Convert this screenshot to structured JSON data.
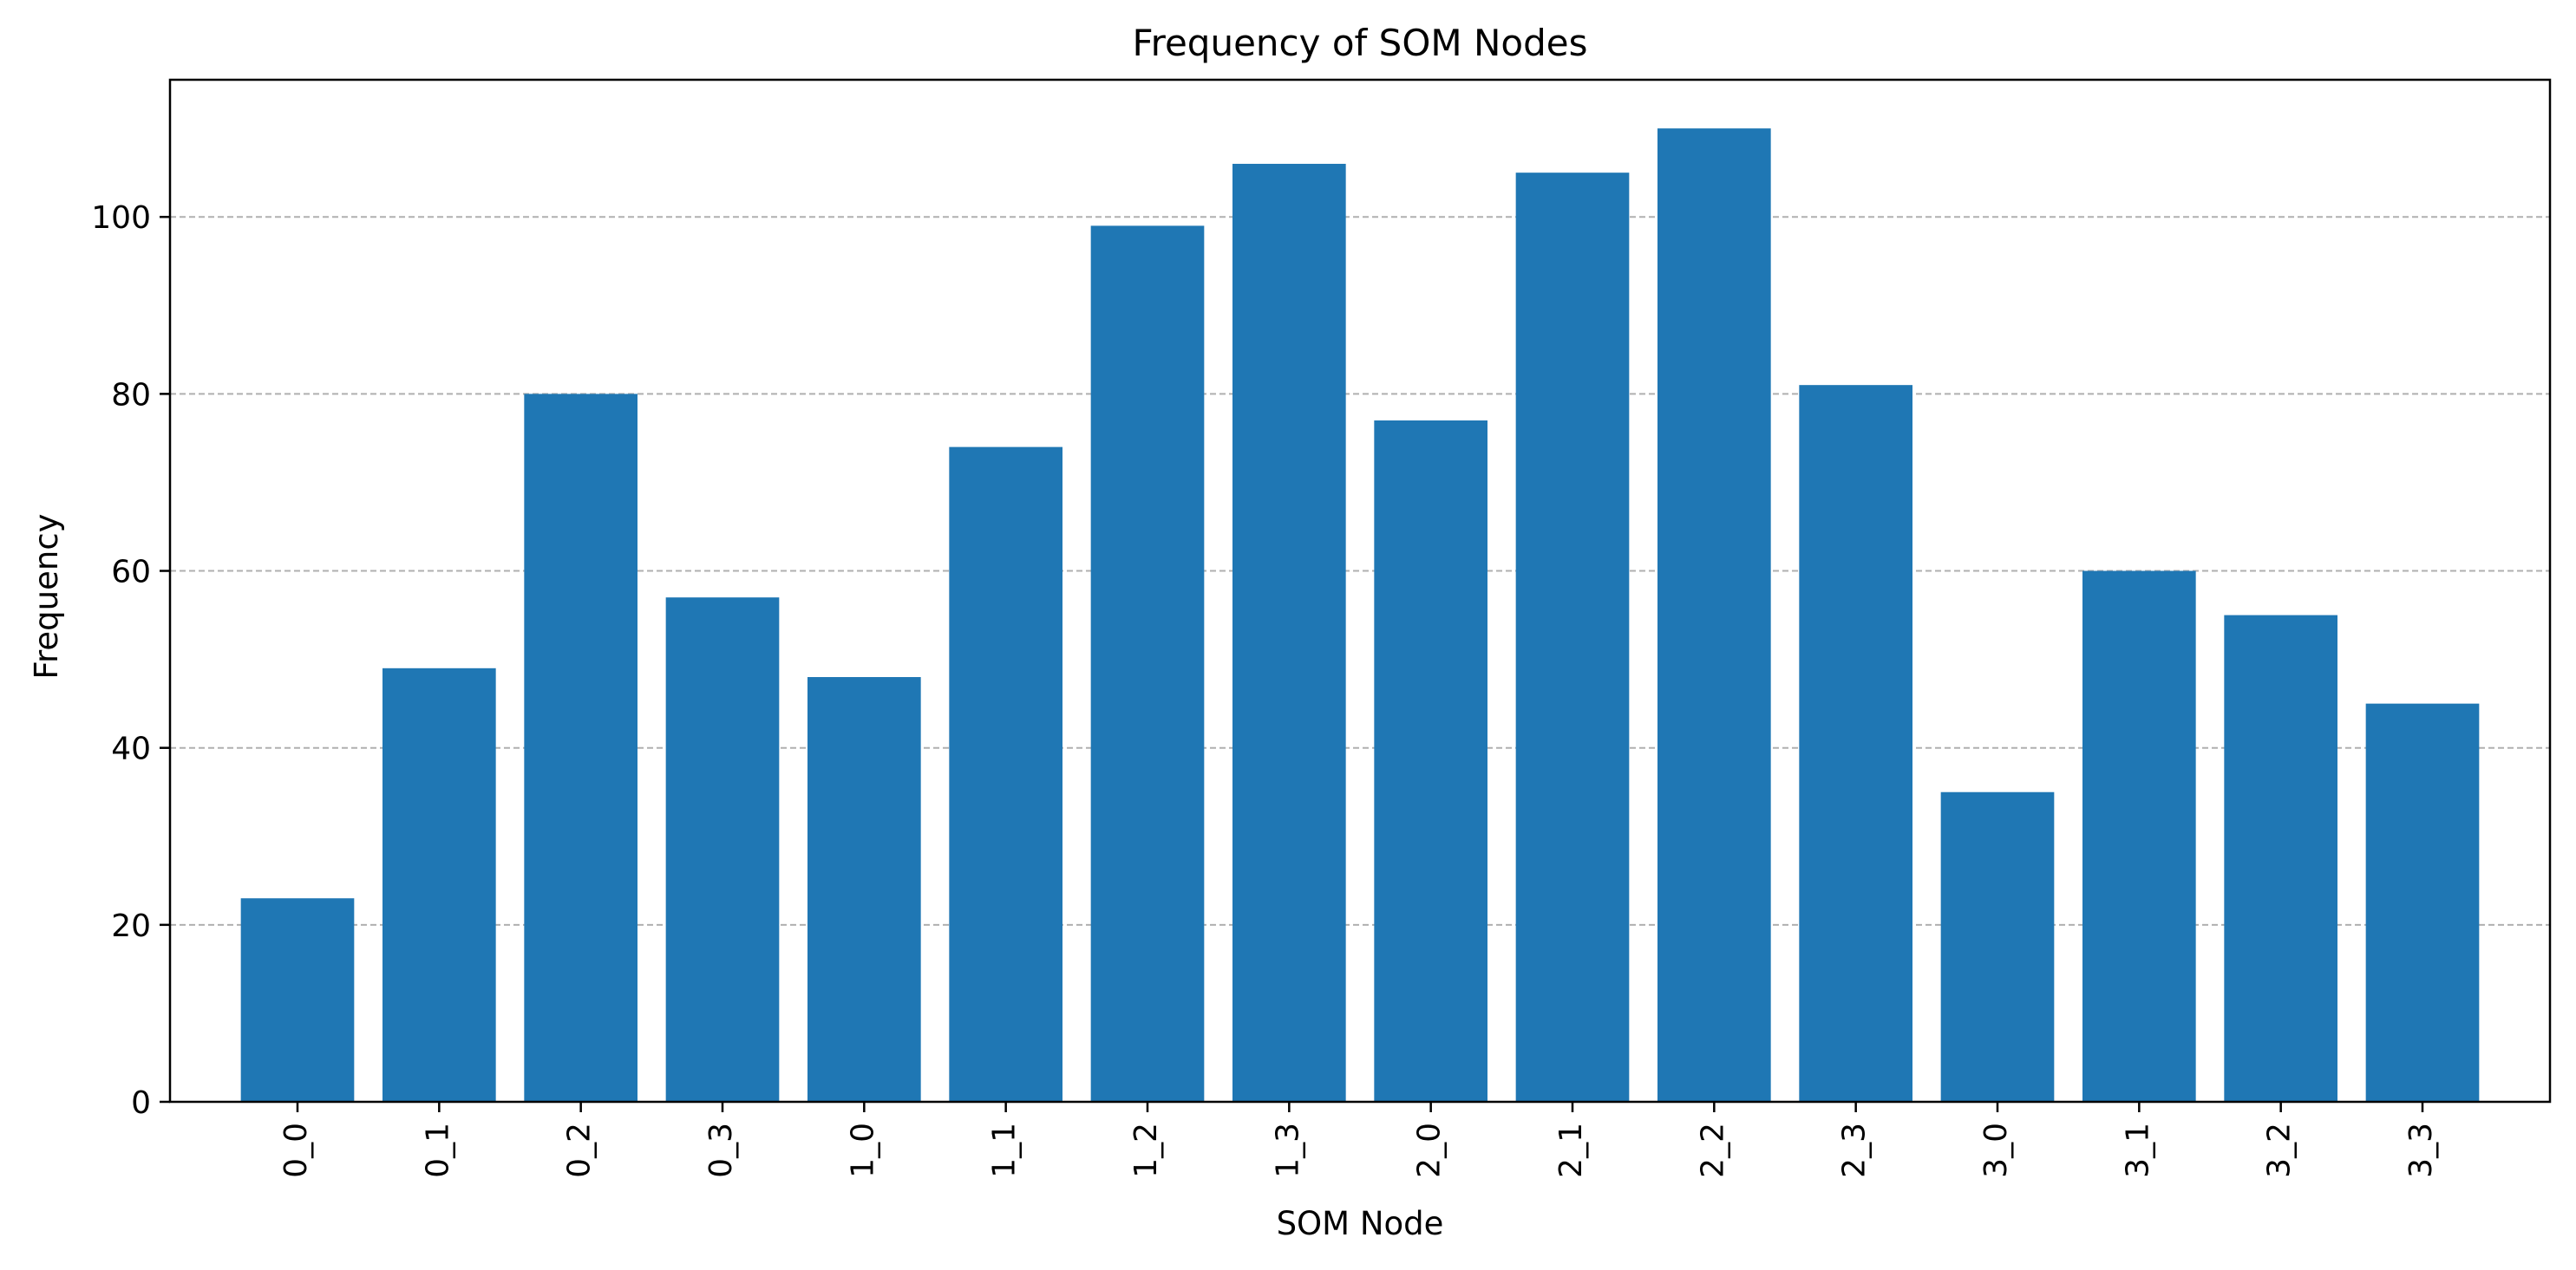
{
  "chart_data": {
    "type": "bar",
    "title": "Frequency of SOM Nodes",
    "xlabel": "SOM Node",
    "ylabel": "Frequency",
    "categories": [
      "0_0",
      "0_1",
      "0_2",
      "0_3",
      "1_0",
      "1_1",
      "1_2",
      "1_3",
      "2_0",
      "2_1",
      "2_2",
      "2_3",
      "3_0",
      "3_1",
      "3_2",
      "3_3"
    ],
    "values": [
      23,
      49,
      80,
      57,
      48,
      74,
      99,
      106,
      77,
      105,
      110,
      81,
      35,
      60,
      55,
      45
    ],
    "ylim": [
      0,
      115.5
    ],
    "yticks": [
      0,
      20,
      40,
      60,
      80,
      100
    ],
    "grid": "y-dashed",
    "bar_color": "#1f77b4",
    "grid_color": "#b0b0b0"
  }
}
